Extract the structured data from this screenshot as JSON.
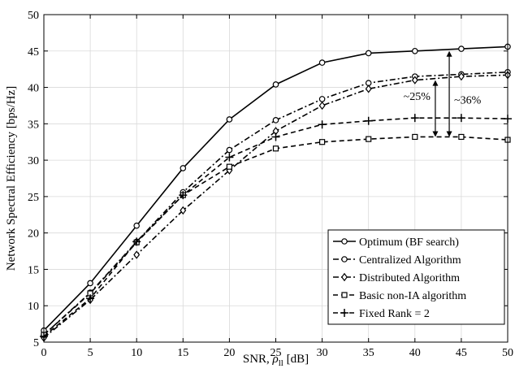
{
  "chart_data": {
    "type": "line",
    "title": "",
    "xlabel": "SNR, ",
    "xlabel_symbol": "ρ",
    "xlabel_sub": "ll",
    "xlabel_unit": " [dB]",
    "ylabel": "Network Spectral Efficiency [bps/Hz]",
    "xlim": [
      0,
      50
    ],
    "ylim": [
      5,
      50
    ],
    "xticks": [
      0,
      5,
      10,
      15,
      20,
      25,
      30,
      35,
      40,
      45,
      50
    ],
    "yticks": [
      5,
      10,
      15,
      20,
      25,
      30,
      35,
      40,
      45,
      50
    ],
    "grid": true,
    "legend_position": "bottom-right",
    "x": [
      0,
      5,
      10,
      15,
      20,
      25,
      30,
      35,
      40,
      45,
      50
    ],
    "series": [
      {
        "name": "Optimum (BF search)",
        "marker": "circle",
        "dash": "solid",
        "values": [
          6.6,
          13.1,
          21.0,
          28.9,
          35.6,
          40.4,
          43.4,
          44.7,
          45.0,
          45.3,
          45.6
        ]
      },
      {
        "name": "Centralized Algorithm",
        "marker": "circle",
        "dash": "dashdot",
        "values": [
          6.0,
          11.8,
          18.8,
          25.6,
          31.4,
          35.5,
          38.4,
          40.6,
          41.5,
          41.8,
          42.1
        ]
      },
      {
        "name": "Distributed Algorithm",
        "marker": "diamond",
        "dash": "dashdot",
        "values": [
          5.6,
          10.8,
          17.0,
          23.1,
          28.6,
          34.0,
          37.5,
          39.8,
          41.0,
          41.5,
          41.7
        ]
      },
      {
        "name": "Basic non-IA algorithm",
        "marker": "square",
        "dash": "dashed",
        "values": [
          6.0,
          11.7,
          18.7,
          25.2,
          29.1,
          31.6,
          32.5,
          32.9,
          33.2,
          33.2,
          32.8
        ]
      },
      {
        "name": "Fixed Rank = 2",
        "marker": "plus",
        "dash": "dashed",
        "values": [
          5.8,
          11.0,
          18.8,
          25.2,
          30.4,
          33.2,
          34.9,
          35.4,
          35.8,
          35.8,
          35.7
        ]
      }
    ],
    "annotations": [
      {
        "text": "~25%",
        "x": 42.2,
        "y_top": 41.0,
        "y_bottom": 33.2
      },
      {
        "text": "~36%",
        "x": 43.7,
        "y_top": 45.0,
        "y_bottom": 33.2
      }
    ]
  }
}
